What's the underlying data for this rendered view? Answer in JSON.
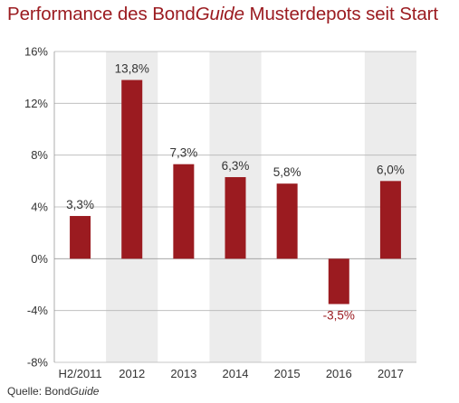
{
  "title": {
    "prefix": "Performance des Bond",
    "italic": "Guide",
    "suffix": " Musterdepots seit Start"
  },
  "source": {
    "prefix": "Quelle: Bond",
    "italic": "Guide"
  },
  "colors": {
    "bar": "#9b1b20",
    "negative_label": "#9b1b20",
    "label": "#333333",
    "band": "#ececec",
    "grid": "#b5b5b5"
  },
  "chart_data": {
    "type": "bar",
    "categories": [
      "H2/2011",
      "2012",
      "2013",
      "2014",
      "2015",
      "2016",
      "2017"
    ],
    "values": [
      3.3,
      13.8,
      7.3,
      6.3,
      5.8,
      -3.5,
      6.0
    ],
    "data_labels": [
      "3,3%",
      "13,8%",
      "7,3%",
      "6,3%",
      "5,8%",
      "-3,5%",
      "6,0%"
    ],
    "ylim": [
      -8,
      16
    ],
    "yticks": [
      -8,
      -4,
      0,
      4,
      8,
      12,
      16
    ],
    "ytick_labels": [
      "-8%",
      "-4%",
      "0%",
      "4%",
      "8%",
      "12%",
      "16%"
    ],
    "shaded_categories": [
      "2012",
      "2014",
      "2017"
    ],
    "grid": "horizontal",
    "legend": "none"
  }
}
